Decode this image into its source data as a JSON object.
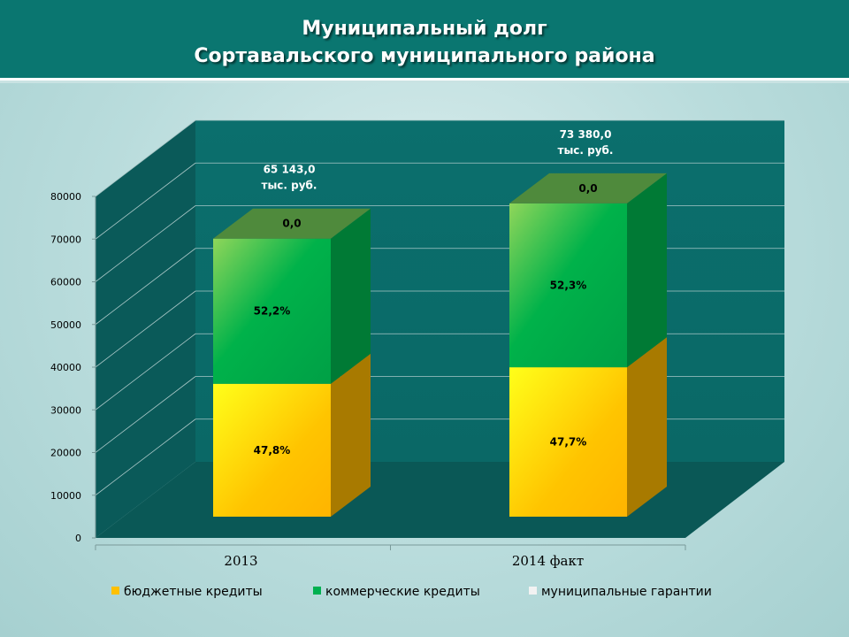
{
  "header": {
    "title_line1": "Муниципальный долг",
    "title_line2": "Сортавальского муниципального района"
  },
  "chart_data": {
    "type": "bar",
    "stacked": true,
    "three_d": true,
    "title": "Муниципальный долг Сортавальского муниципального района",
    "categories": [
      "2013",
      "2014 факт"
    ],
    "totals": [
      65143.0,
      73380.0
    ],
    "total_labels": [
      [
        "65 143,0",
        "тыс. руб."
      ],
      [
        "73 380,0",
        "тыс. руб."
      ]
    ],
    "series": [
      {
        "name": "бюджетные кредиты",
        "color": "#ffc000",
        "values": [
          31138.4,
          35002.3
        ],
        "labels": [
          "47,8%",
          "47,7%"
        ]
      },
      {
        "name": "коммерческие кредиты",
        "color": "#00b050",
        "values": [
          34004.6,
          38377.7
        ],
        "labels": [
          "52,2%",
          "52,3%"
        ]
      },
      {
        "name": "муниципальные гарантии",
        "color": "#f2f2f2",
        "values": [
          0,
          0
        ],
        "labels": [
          "0,0",
          "0,0"
        ]
      }
    ],
    "y_ticks": [
      "0",
      "10000",
      "20000",
      "30000",
      "40000",
      "50000",
      "60000",
      "70000",
      "80000"
    ],
    "ylim": [
      0,
      80000
    ],
    "grid": true,
    "legend_position": "bottom"
  }
}
